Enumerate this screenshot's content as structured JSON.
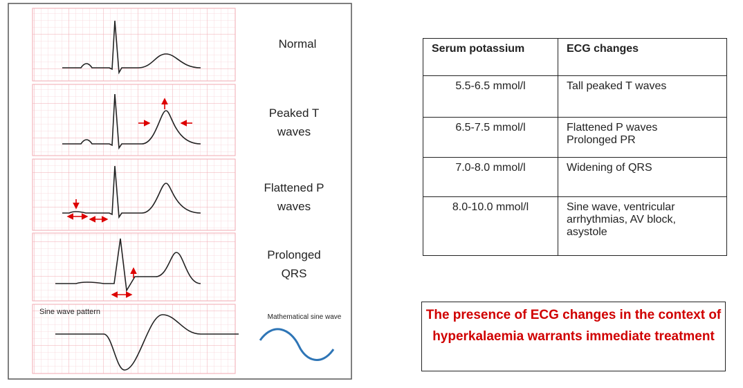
{
  "ecg_panels": [
    {
      "label": "Normal"
    },
    {
      "label": "Peaked T waves"
    },
    {
      "label": "Flattened P waves"
    },
    {
      "label": "Prolonged QRS"
    }
  ],
  "sine_panel": {
    "label": "Sine wave pattern",
    "math_label": "Mathematical sine wave"
  },
  "table": {
    "headers": [
      "Serum potassium",
      "ECG changes"
    ],
    "rows": [
      [
        "5.5-6.5 mmol/l",
        [
          "Tall peaked T waves"
        ]
      ],
      [
        "6.5-7.5 mmol/l",
        [
          "Flattened P waves",
          "Prolonged PR"
        ]
      ],
      [
        "7.0-8.0 mmol/l",
        [
          "Widening of QRS"
        ]
      ],
      [
        "8.0-10.0 mmol/l",
        [
          "Sine wave, ventricular arrhythmias, AV block, asystole"
        ]
      ]
    ]
  },
  "note": "The presence of ECG changes in the context of hyperkalaemia warrants immediate treatment"
}
